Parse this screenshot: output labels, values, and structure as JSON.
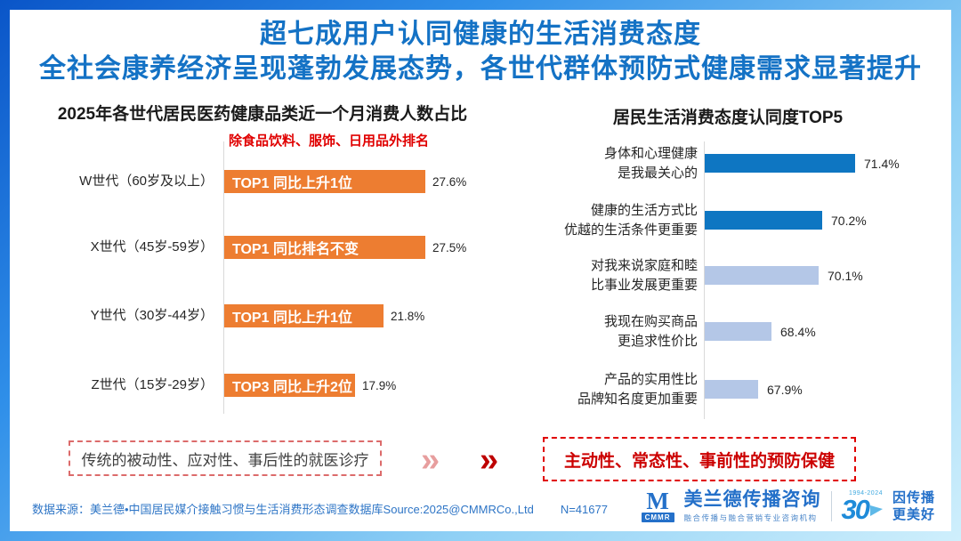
{
  "title": {
    "line1": "超七成用户认同健康的生活消费态度",
    "line2": "全社会康养经济呈现蓬勃发展态势，各世代群体预防式健康需求显著提升",
    "color": "#1472C5"
  },
  "chart_data": [
    {
      "type": "bar",
      "orientation": "horizontal",
      "title": "2025年各世代居民医药健康品类近一个月消费人数占比",
      "subtitle": "除食品饮料、服饰、日用品外排名",
      "categories": [
        "W世代（60岁及以上）",
        "X世代（45岁-59岁）",
        "Y世代（30岁-44岁）",
        "Z世代（15岁-29岁）"
      ],
      "values": [
        27.6,
        27.5,
        21.8,
        17.9
      ],
      "bar_labels": [
        "TOP1 同比上升1位",
        "TOP1 同比排名不变",
        "TOP1 同比上升1位",
        "TOP3 同比上升2位"
      ],
      "value_labels": [
        "27.6%",
        "27.5%",
        "21.8%",
        "17.9%"
      ],
      "bar_color": "#ED7D31",
      "xlim": [
        0,
        30
      ],
      "grid": false,
      "legend": false
    },
    {
      "type": "bar",
      "orientation": "horizontal",
      "title": "居民生活消费态度认同度TOP5",
      "cat_lines": [
        [
          "身体和心理健康",
          "是我最关心的"
        ],
        [
          "健康的生活方式比",
          "优越的生活条件更重要"
        ],
        [
          "对我来说家庭和睦",
          "比事业发展更重要"
        ],
        [
          "我现在购买商品",
          "更追求性价比"
        ],
        [
          "产品的实用性比",
          "品牌知名度更加重要"
        ]
      ],
      "values": [
        71.4,
        70.2,
        70.1,
        68.4,
        67.9
      ],
      "value_labels": [
        "71.4%",
        "70.2%",
        "70.1%",
        "68.4%",
        "67.9%"
      ],
      "bar_colors": [
        "#0E76C2",
        "#0E76C2",
        "#B4C7E7",
        "#B4C7E7",
        "#B4C7E7"
      ],
      "xlim": [
        66,
        72
      ],
      "grid": false,
      "legend": false
    }
  ],
  "transition": {
    "from": "传统的被动性、应对性、事后性的就医诊疗",
    "to": "主动性、常态性、事前性的预防保健",
    "chevron": "»"
  },
  "footer": {
    "source": "数据来源：美兰德•中国居民媒介接触习惯与生活消费形态调查数据库Source:2025@CMMRCo.,Ltd",
    "sample": "N=41677",
    "logo": {
      "cmmr_mark": "M",
      "cmmr_abbr": "CMMR",
      "name": "美兰德传播咨询",
      "tagline": "融合传播与融合营销专业咨询机构",
      "anniversary_years": "1994-2024",
      "anniversary_number": "30",
      "slogan_line1": "因传播",
      "slogan_line2": "更美好"
    }
  }
}
